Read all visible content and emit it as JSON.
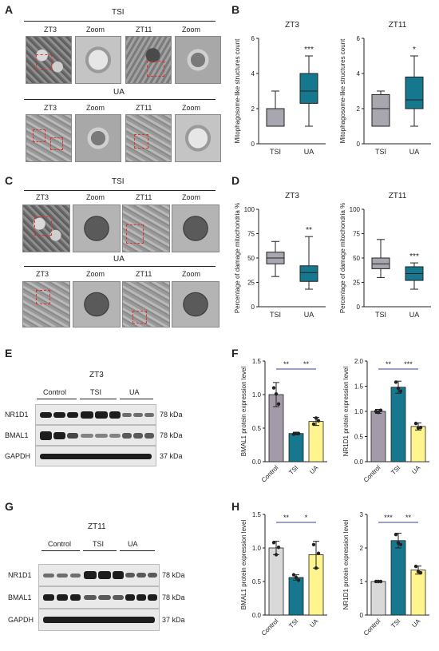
{
  "panel_labels": {
    "a": "A",
    "b": "B",
    "c": "C",
    "d": "D",
    "e": "E",
    "f": "F",
    "g": "G",
    "h": "H"
  },
  "panel_a": {
    "group_top": "TSI",
    "group_bottom": "UA",
    "headers": [
      "ZT3",
      "Zoom",
      "ZT11",
      "Zoom"
    ]
  },
  "panel_c": {
    "group_top": "TSI",
    "group_bottom": "UA",
    "headers": [
      "ZT3",
      "Zoom",
      "ZT11",
      "Zoom"
    ]
  },
  "panel_e": {
    "title": "ZT3",
    "groups": [
      "Control",
      "TSI",
      "UA"
    ],
    "rows": [
      {
        "name": "NR1D1",
        "size": "78 kDa"
      },
      {
        "name": "BMAL1",
        "size": "78 kDa"
      },
      {
        "name": "GAPDH",
        "size": "37 kDa"
      }
    ]
  },
  "panel_g": {
    "title": "ZT11",
    "groups": [
      "Control",
      "TSI",
      "UA"
    ],
    "rows": [
      {
        "name": "NR1D1",
        "size": "78 kDa"
      },
      {
        "name": "BMAL1",
        "size": "78 kDa"
      },
      {
        "name": "GAPDH",
        "size": "37 kDa"
      }
    ]
  },
  "colors": {
    "tsi": "#16788e",
    "ua_box": "#16788e",
    "tsi_box": "#a8a7af",
    "control_f": "#a39ba9",
    "ua_f": "#fff48d",
    "control_h": "#d9d9d9"
  },
  "chart_data": [
    {
      "type": "box",
      "panel": "B",
      "title": "ZT3",
      "ylabel": "Mitophagosome-like structures count",
      "ylim": [
        0,
        6
      ],
      "yticks": [
        0,
        2,
        4,
        6
      ],
      "categories": [
        "TSI",
        "UA"
      ],
      "significance": [
        "",
        "***"
      ],
      "boxes": [
        {
          "min": 1,
          "q1": 1,
          "median": 2,
          "q3": 2,
          "max": 3
        },
        {
          "min": 1,
          "q1": 2.3,
          "median": 3,
          "q3": 4,
          "max": 5
        }
      ]
    },
    {
      "type": "box",
      "panel": "B",
      "title": "ZT11",
      "ylabel": "Mitophagosome-like structures count",
      "ylim": [
        0,
        6
      ],
      "yticks": [
        0,
        2,
        4,
        6
      ],
      "categories": [
        "TSI",
        "UA"
      ],
      "significance": [
        "",
        "*"
      ],
      "boxes": [
        {
          "min": 1,
          "q1": 1,
          "median": 2,
          "q3": 2.8,
          "max": 3
        },
        {
          "min": 1,
          "q1": 2,
          "median": 2.5,
          "q3": 3.8,
          "max": 5
        }
      ]
    },
    {
      "type": "box",
      "panel": "D",
      "title": "ZT3",
      "ylabel": "Percentage of damage mitochondria %",
      "ylim": [
        0,
        100
      ],
      "yticks": [
        0,
        25,
        50,
        75,
        100
      ],
      "categories": [
        "TSI",
        "UA"
      ],
      "significance": [
        "",
        "**"
      ],
      "boxes": [
        {
          "min": 31,
          "q1": 44,
          "median": 50,
          "q3": 56,
          "max": 67
        },
        {
          "min": 18,
          "q1": 26,
          "median": 35,
          "q3": 42,
          "max": 72
        }
      ]
    },
    {
      "type": "box",
      "panel": "D",
      "title": "ZT11",
      "ylabel": "Percentage of damage mitochondria %",
      "ylim": [
        0,
        100
      ],
      "yticks": [
        0,
        25,
        50,
        75,
        100
      ],
      "categories": [
        "TSI",
        "UA"
      ],
      "significance": [
        "",
        "***"
      ],
      "boxes": [
        {
          "min": 30,
          "q1": 39,
          "median": 44,
          "q3": 50,
          "max": 69
        },
        {
          "min": 18,
          "q1": 27,
          "median": 34,
          "q3": 41,
          "max": 45
        }
      ]
    },
    {
      "type": "bar",
      "panel": "F",
      "ylabel": "BMAL1 protein expression level",
      "ylim": [
        0,
        1.5
      ],
      "yticks": [
        0.0,
        0.5,
        1.0,
        1.5
      ],
      "categories": [
        "Control",
        "TSI",
        "UA"
      ],
      "values": [
        1.0,
        0.42,
        0.6
      ],
      "errors": [
        0.18,
        0.02,
        0.06
      ],
      "points": [
        [
          1.1,
          1.01,
          0.86
        ],
        [
          0.41,
          0.42,
          0.42
        ],
        [
          0.56,
          0.65,
          0.61
        ]
      ],
      "comparisons": [
        {
          "from": 0,
          "to": 1,
          "label": "**"
        },
        {
          "from": 1,
          "to": 2,
          "label": "**"
        }
      ]
    },
    {
      "type": "bar",
      "panel": "F",
      "ylabel": "NR1D1 protein expression level",
      "ylim": [
        0,
        2.0
      ],
      "yticks": [
        0.0,
        0.5,
        1.0,
        1.5,
        2.0
      ],
      "categories": [
        "Control",
        "TSI",
        "UA"
      ],
      "values": [
        1.0,
        1.48,
        0.7
      ],
      "errors": [
        0.04,
        0.12,
        0.07
      ],
      "points": [
        [
          1.0,
          0.98,
          1.02
        ],
        [
          1.58,
          1.46,
          1.4
        ],
        [
          0.76,
          0.67,
          0.68
        ]
      ],
      "comparisons": [
        {
          "from": 0,
          "to": 1,
          "label": "**"
        },
        {
          "from": 1,
          "to": 2,
          "label": "***"
        }
      ]
    },
    {
      "type": "bar",
      "panel": "H",
      "ylabel": "BMAL1 protein expression level",
      "ylim": [
        0,
        1.5
      ],
      "yticks": [
        0.0,
        0.5,
        1.0,
        1.5
      ],
      "categories": [
        "Control",
        "TSI",
        "UA"
      ],
      "values": [
        1.0,
        0.56,
        0.9
      ],
      "errors": [
        0.1,
        0.04,
        0.2
      ],
      "points": [
        [
          1.08,
          0.9,
          1.01
        ],
        [
          0.6,
          0.56,
          0.52
        ],
        [
          1.05,
          0.7,
          0.92
        ]
      ],
      "comparisons": [
        {
          "from": 0,
          "to": 1,
          "label": "**"
        },
        {
          "from": 1,
          "to": 2,
          "label": "*"
        }
      ]
    },
    {
      "type": "bar",
      "panel": "H",
      "ylabel": "NR1D1 protein expression level",
      "ylim": [
        0,
        3
      ],
      "yticks": [
        0,
        1,
        2,
        3
      ],
      "categories": [
        "Control",
        "TSI",
        "UA"
      ],
      "values": [
        1.0,
        2.22,
        1.34
      ],
      "errors": [
        0.02,
        0.22,
        0.12
      ],
      "points": [
        [
          1.0,
          1.0,
          1.0
        ],
        [
          2.4,
          2.15,
          2.1
        ],
        [
          1.45,
          1.3,
          1.26
        ]
      ],
      "comparisons": [
        {
          "from": 0,
          "to": 1,
          "label": "***"
        },
        {
          "from": 1,
          "to": 2,
          "label": "**"
        }
      ]
    }
  ]
}
